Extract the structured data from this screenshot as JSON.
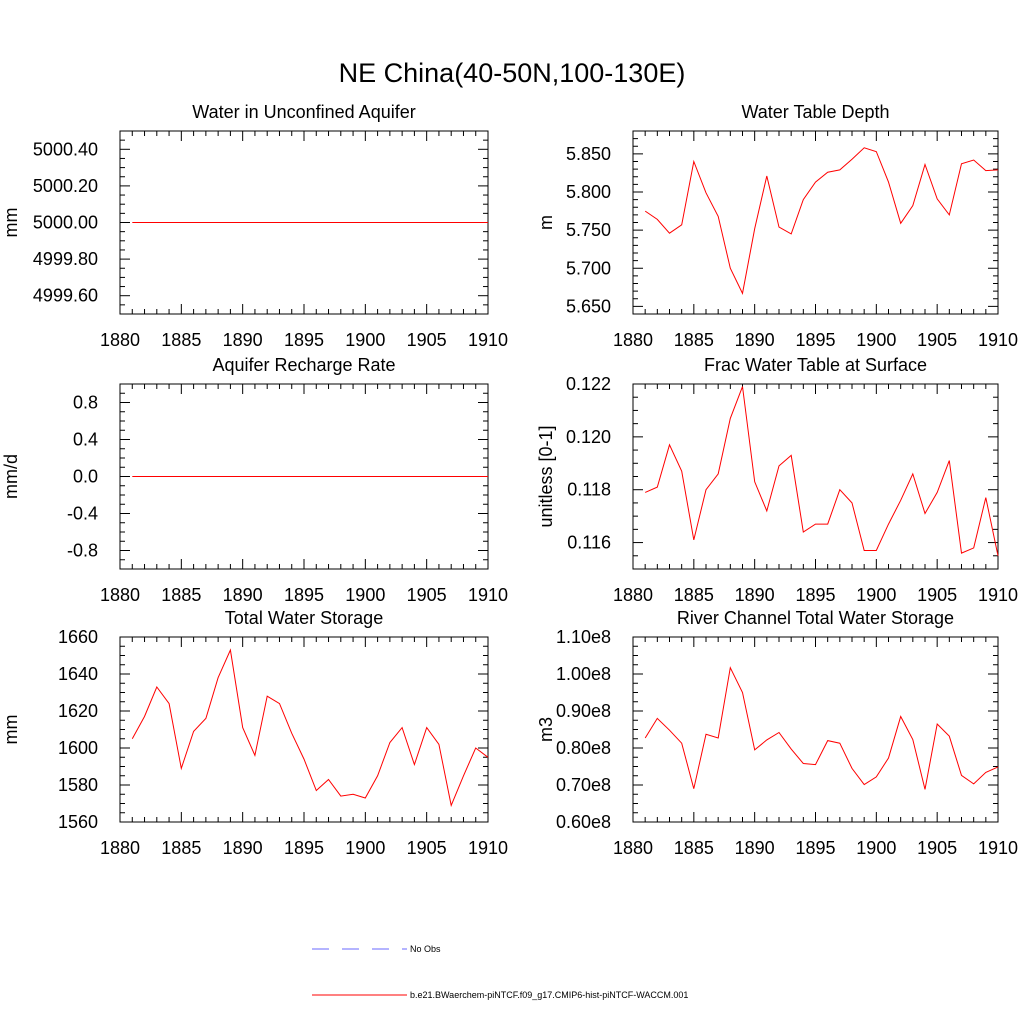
{
  "figure": {
    "title": "NE China(40-50N,100-130E)"
  },
  "legend": {
    "items": [
      {
        "label": "No Obs",
        "color": "#6a6aff",
        "style": "dashed"
      },
      {
        "label": "b.e21.BWaerchem-piNTCF.f09_g17.CMIP6-hist-piNTCF-WACCM.001",
        "color": "#ff0000",
        "style": "solid"
      }
    ]
  },
  "chart_data": [
    {
      "type": "line",
      "title": "Water in Unconfined Aquifer",
      "xlabel": "",
      "ylabel": "mm",
      "xlim": [
        1880,
        1910
      ],
      "ylim": [
        4999.5,
        5000.5
      ],
      "xticks": [
        1880,
        1885,
        1890,
        1895,
        1900,
        1905,
        1910
      ],
      "yticks": [
        4999.6,
        4999.8,
        5000.0,
        5000.2,
        5000.4
      ],
      "ytick_labels": [
        "4999.60",
        "4999.80",
        "5000.00",
        "5000.20",
        "5000.40"
      ],
      "minor_y": 0.05,
      "series": [
        {
          "color": "#ff0000",
          "x": [
            1881,
            1910
          ],
          "y": [
            5000.0,
            5000.0
          ]
        }
      ]
    },
    {
      "type": "line",
      "title": "Water Table Depth",
      "xlabel": "",
      "ylabel": "m",
      "xlim": [
        1880,
        1910
      ],
      "ylim": [
        5.64,
        5.88
      ],
      "xticks": [
        1880,
        1885,
        1890,
        1895,
        1900,
        1905,
        1910
      ],
      "yticks": [
        5.65,
        5.7,
        5.75,
        5.8,
        5.85
      ],
      "ytick_labels": [
        "5.650",
        "5.700",
        "5.750",
        "5.800",
        "5.850"
      ],
      "minor_y": 0.01,
      "series": [
        {
          "color": "#ff0000",
          "x": [
            1881,
            1882,
            1883,
            1884,
            1885,
            1886,
            1887,
            1888,
            1889,
            1890,
            1891,
            1892,
            1893,
            1894,
            1895,
            1896,
            1897,
            1898,
            1899,
            1900,
            1901,
            1902,
            1903,
            1904,
            1905,
            1906,
            1907,
            1908,
            1909,
            1910
          ],
          "y": [
            5.775,
            5.764,
            5.746,
            5.757,
            5.84,
            5.799,
            5.768,
            5.7,
            5.667,
            5.752,
            5.821,
            5.754,
            5.745,
            5.79,
            5.813,
            5.826,
            5.829,
            5.843,
            5.858,
            5.853,
            5.813,
            5.759,
            5.782,
            5.836,
            5.791,
            5.77,
            5.837,
            5.842,
            5.828,
            5.829
          ]
        }
      ]
    },
    {
      "type": "line",
      "title": "Aquifer Recharge Rate",
      "xlabel": "",
      "ylabel": "mm/d",
      "xlim": [
        1880,
        1910
      ],
      "ylim": [
        -1.0,
        1.0
      ],
      "xticks": [
        1880,
        1885,
        1890,
        1895,
        1900,
        1905,
        1910
      ],
      "yticks": [
        -0.8,
        -0.4,
        0.0,
        0.4,
        0.8
      ],
      "ytick_labels": [
        "-0.8",
        "-0.4",
        "0.0",
        "0.4",
        "0.8"
      ],
      "minor_y": 0.1,
      "series": [
        {
          "color": "#ff0000",
          "x": [
            1881,
            1910
          ],
          "y": [
            0.0,
            0.0
          ]
        }
      ]
    },
    {
      "type": "line",
      "title": "Frac Water Table at Surface",
      "xlabel": "",
      "ylabel": "unitless [0-1]",
      "xlim": [
        1880,
        1910
      ],
      "ylim": [
        0.115,
        0.122
      ],
      "xticks": [
        1880,
        1885,
        1890,
        1895,
        1900,
        1905,
        1910
      ],
      "yticks": [
        0.116,
        0.118,
        0.12,
        0.122
      ],
      "ytick_labels": [
        "0.116",
        "0.118",
        "0.120",
        "0.122"
      ],
      "minor_y": 0.0005,
      "series": [
        {
          "color": "#ff0000",
          "x": [
            1881,
            1882,
            1883,
            1884,
            1885,
            1886,
            1887,
            1888,
            1889,
            1890,
            1891,
            1892,
            1893,
            1894,
            1895,
            1896,
            1897,
            1898,
            1899,
            1900,
            1901,
            1902,
            1903,
            1904,
            1905,
            1906,
            1907,
            1908,
            1909,
            1910
          ],
          "y": [
            0.1179,
            0.1181,
            0.1197,
            0.1187,
            0.1161,
            0.118,
            0.1186,
            0.1207,
            0.1219,
            0.1183,
            0.1172,
            0.1189,
            0.1193,
            0.1164,
            0.1167,
            0.1167,
            0.118,
            0.1175,
            0.1157,
            0.1157,
            0.1167,
            0.1176,
            0.1186,
            0.1171,
            0.1179,
            0.1191,
            0.1156,
            0.1158,
            0.1177,
            0.1155
          ]
        }
      ]
    },
    {
      "type": "line",
      "title": "Total Water Storage",
      "xlabel": "",
      "ylabel": "mm",
      "xlim": [
        1880,
        1910
      ],
      "ylim": [
        1560,
        1660
      ],
      "xticks": [
        1880,
        1885,
        1890,
        1895,
        1900,
        1905,
        1910
      ],
      "yticks": [
        1560,
        1580,
        1600,
        1620,
        1640,
        1660
      ],
      "ytick_labels": [
        "1560",
        "1580",
        "1600",
        "1620",
        "1640",
        "1660"
      ],
      "minor_y": 5,
      "series": [
        {
          "color": "#ff0000",
          "x": [
            1881,
            1882,
            1883,
            1884,
            1885,
            1886,
            1887,
            1888,
            1889,
            1890,
            1891,
            1892,
            1893,
            1894,
            1895,
            1896,
            1897,
            1898,
            1899,
            1900,
            1901,
            1902,
            1903,
            1904,
            1905,
            1906,
            1907,
            1908,
            1909,
            1910
          ],
          "y": [
            1605,
            1617,
            1633,
            1624,
            1589,
            1609,
            1616,
            1638,
            1653,
            1611,
            1596,
            1628,
            1624,
            1608,
            1594,
            1577,
            1583,
            1574,
            1575,
            1573,
            1585,
            1603,
            1611,
            1591,
            1611,
            1602,
            1569,
            1585,
            1600,
            1595
          ]
        }
      ]
    },
    {
      "type": "line",
      "title": "River Channel Total Water Storage",
      "xlabel": "",
      "ylabel": "m3",
      "xlim": [
        1880,
        1910
      ],
      "ylim": [
        0.6,
        1.1
      ],
      "xticks": [
        1880,
        1885,
        1890,
        1895,
        1900,
        1905,
        1910
      ],
      "yticks": [
        0.6,
        0.7,
        0.8,
        0.9,
        1.0,
        1.1
      ],
      "ytick_labels": [
        "0.60e8",
        "0.70e8",
        "0.80e8",
        "0.90e8",
        "1.00e8",
        "1.10e8"
      ],
      "minor_y": 0.025,
      "series": [
        {
          "color": "#ff0000",
          "x": [
            1881,
            1882,
            1883,
            1884,
            1885,
            1886,
            1887,
            1888,
            1889,
            1890,
            1891,
            1892,
            1893,
            1894,
            1895,
            1896,
            1897,
            1898,
            1899,
            1900,
            1901,
            1902,
            1903,
            1904,
            1905,
            1906,
            1907,
            1908,
            1909,
            1910
          ],
          "y": [
            0.827,
            0.88,
            0.848,
            0.813,
            0.69,
            0.837,
            0.827,
            1.017,
            0.95,
            0.795,
            0.822,
            0.842,
            0.797,
            0.758,
            0.755,
            0.82,
            0.813,
            0.745,
            0.701,
            0.722,
            0.773,
            0.885,
            0.823,
            0.688,
            0.865,
            0.832,
            0.726,
            0.703,
            0.734,
            0.749
          ]
        }
      ]
    }
  ]
}
